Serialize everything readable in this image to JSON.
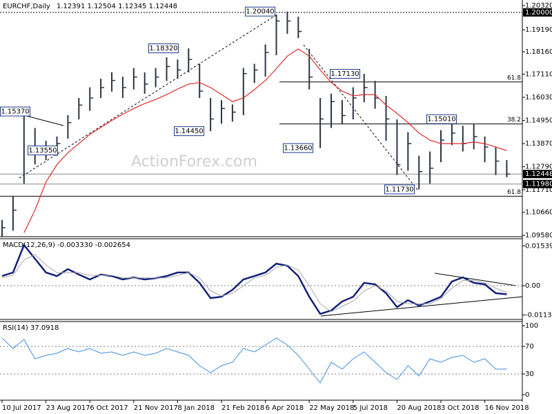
{
  "chart_data": [
    {
      "type": "hlc",
      "title": "EURCHF,Daily",
      "subtitle": "1.12391 1.12504 1.12345 1.12448",
      "watermark": "ActionForex.com",
      "categories": [
        "10 Jul 2017",
        null,
        null,
        null,
        "23 Aug 2017",
        null,
        null,
        null,
        "6 Oct 2017",
        null,
        null,
        null,
        "21 Nov 2017",
        null,
        null,
        null,
        "8 Jan 2018",
        null,
        null,
        null,
        "21 Feb 2018",
        null,
        null,
        null,
        "6 Apr 2018",
        null,
        null,
        null,
        "22 May 2018",
        null,
        null,
        null,
        "5 Jul 2018",
        null,
        null,
        null,
        "20 Aug 2018",
        null,
        null,
        null,
        "3 Oct 2018",
        null,
        null,
        null,
        "16 Nov 2018",
        null,
        null
      ],
      "high": [
        1.103,
        1.114,
        1.1537,
        1.146,
        1.14,
        1.142,
        1.152,
        1.16,
        1.165,
        1.169,
        1.172,
        1.17,
        1.174,
        1.172,
        1.174,
        1.179,
        1.178,
        1.1832,
        1.176,
        1.16,
        1.159,
        1.157,
        1.174,
        1.176,
        1.185,
        1.199,
        1.2004,
        1.198,
        1.183,
        1.16,
        1.162,
        1.159,
        1.165,
        1.1713,
        1.168,
        1.161,
        1.15,
        1.144,
        1.133,
        1.135,
        1.145,
        1.1501,
        1.147,
        1.148,
        1.142,
        1.137,
        1.131
      ],
      "low": [
        1.095,
        1.098,
        1.12,
        1.129,
        1.131,
        1.133,
        1.141,
        1.15,
        1.154,
        1.16,
        1.163,
        1.16,
        1.164,
        1.162,
        1.165,
        1.168,
        1.169,
        1.172,
        1.16,
        1.1445,
        1.148,
        1.149,
        1.152,
        1.167,
        1.17,
        1.18,
        1.19,
        1.188,
        1.164,
        1.1366,
        1.146,
        1.148,
        1.15,
        1.158,
        1.155,
        1.14,
        1.124,
        1.126,
        1.1173,
        1.12,
        1.13,
        1.138,
        1.135,
        1.136,
        1.13,
        1.124,
        1.123
      ],
      "close": [
        1.0994,
        1.1076,
        1.1518,
        1.1354,
        1.1338,
        1.1387,
        1.1485,
        1.1567,
        1.16,
        1.1649,
        1.1682,
        1.1649,
        1.1698,
        1.1665,
        1.1698,
        1.1747,
        1.1731,
        1.178,
        1.1632,
        1.1502,
        1.1551,
        1.1534,
        1.1714,
        1.1731,
        1.1813,
        1.196,
        1.196,
        1.1911,
        1.1698,
        1.1502,
        1.1583,
        1.1518,
        1.16,
        1.1649,
        1.16,
        1.1502,
        1.1289,
        1.1387,
        1.1256,
        1.1272,
        1.1403,
        1.1436,
        1.1387,
        1.142,
        1.1371,
        1.1305,
        1.12448
      ],
      "color": "#2b3440",
      "ma_values": [
        null,
        null,
        1.097,
        1.1076,
        1.1207,
        1.1289,
        1.1344,
        1.1387,
        1.143,
        1.1462,
        1.1495,
        1.1524,
        1.1551,
        1.1574,
        1.1593,
        1.1616,
        1.1642,
        1.1665,
        1.1672,
        1.1649,
        1.1616,
        1.1583,
        1.16,
        1.1639,
        1.1682,
        1.1737,
        1.1796,
        1.1829,
        1.1796,
        1.1731,
        1.1672,
        1.1632,
        1.161,
        1.1616,
        1.1616,
        1.1567,
        1.1528,
        1.1485,
        1.1436,
        1.1403,
        1.1387,
        1.1387,
        1.1387,
        1.1394,
        1.1387,
        1.1371,
        1.1354
      ],
      "ma_color": "#e02828",
      "ylim": [
        1.0952,
        1.2058
      ],
      "yticks": [
        {
          "value": 1.2032,
          "label": "1.20320"
        },
        {
          "value": 1.1919,
          "label": "1.19190"
        },
        {
          "value": 1.1816,
          "label": "1.18160"
        },
        {
          "value": 1.1711,
          "label": "1.17110"
        },
        {
          "value": 1.1603,
          "label": "1.16030"
        },
        {
          "value": 1.1495,
          "label": "1.14950"
        },
        {
          "value": 1.1387,
          "label": "1.13870"
        },
        {
          "value": 1.1279,
          "label": "1.12790"
        },
        {
          "value": 1.1171,
          "label": "1.11710"
        },
        {
          "value": 1.1066,
          "label": "1.10660"
        },
        {
          "value": 1.0958,
          "label": "1.09580"
        }
      ],
      "price_levels": [
        {
          "value": 1.2,
          "label": "1.20000"
        },
        {
          "value": 1.12448,
          "label": "1.12448"
        },
        {
          "value": 1.1198,
          "label": "1.11980"
        }
      ],
      "fib_levels": [
        {
          "value": 1.1675,
          "label": "61.8"
        },
        {
          "value": 1.1479,
          "label": "38.2"
        },
        {
          "value": 1.1141,
          "label": "61.8"
        }
      ],
      "annotations": [
        {
          "value": 1.2004,
          "label": "1.20040"
        },
        {
          "value": 1.1832,
          "label": "1.18320"
        },
        {
          "value": 1.1537,
          "label": "1.15370"
        },
        {
          "value": 1.1355,
          "label": "1.13550"
        },
        {
          "value": 1.1445,
          "label": "1.14450"
        },
        {
          "value": 1.1713,
          "label": "1.17130"
        },
        {
          "value": 1.1366,
          "label": "1.13660"
        },
        {
          "value": 1.1501,
          "label": "1.15010"
        },
        {
          "value": 1.1173,
          "label": "1.11730"
        }
      ]
    },
    {
      "type": "line",
      "title": "MACD(12,26,9) -0.003330 -0.002654",
      "series": [
        {
          "color": "#14207a",
          "values": [
            0.0037,
            0.0051,
            0.0157,
            0.0104,
            0.0051,
            0.0037,
            0.0064,
            0.0043,
            0.0024,
            0.0043,
            0.0037,
            0.0024,
            0.0032,
            0.0024,
            0.0029,
            0.0037,
            0.0051,
            0.0051,
            0.0011,
            -0.0048,
            -0.0043,
            -0.0016,
            0.0024,
            0.0037,
            0.0051,
            0.0085,
            0.0077,
            0.0037,
            -0.0043,
            -0.0109,
            -0.0096,
            -0.0061,
            -0.0043,
            0.0011,
            0.0005,
            -0.0029,
            -0.0083,
            -0.0056,
            -0.0077,
            -0.0061,
            -0.0043,
            0.0016,
            0.0032,
            0.0011,
            0.0005,
            -0.0029,
            -0.00333
          ]
        },
        {
          "color": "#a8a8a8",
          "values": [
            0.003,
            0.004,
            0.01,
            0.012,
            0.008,
            0.005,
            0.005,
            0.005,
            0.004,
            0.004,
            0.004,
            0.003,
            0.003,
            0.003,
            0.003,
            0.003,
            0.004,
            0.005,
            0.003,
            -0.002,
            -0.004,
            -0.003,
            0.0,
            0.003,
            0.004,
            0.007,
            0.008,
            0.006,
            0.0,
            -0.007,
            -0.01,
            -0.008,
            -0.006,
            -0.002,
            0.0,
            -0.002,
            -0.006,
            -0.007,
            -0.007,
            -0.007,
            -0.005,
            -0.001,
            0.002,
            0.002,
            0.001,
            -0.001,
            -0.002654
          ]
        }
      ],
      "ylim": [
        -0.01307,
        0.01813
      ],
      "yticks": [
        -0.011352,
        {
          "value": 0,
          "label": "0.00"
        },
        0.015394
      ]
    },
    {
      "type": "line",
      "title": "RSI(14) 37.0918",
      "series": [
        {
          "color": "#3c8ee0",
          "values": [
            82,
            67,
            80,
            52,
            57,
            60,
            67,
            62,
            67,
            60,
            62,
            57,
            62,
            57,
            60,
            67,
            62,
            57,
            42,
            32,
            42,
            47,
            67,
            62,
            72,
            82,
            72,
            57,
            37,
            17,
            47,
            37,
            52,
            62,
            47,
            32,
            22,
            42,
            27,
            52,
            47,
            54,
            57,
            47,
            52,
            37,
            37.0918
          ]
        }
      ],
      "ylim": [
        -8,
        106
      ],
      "yticks": [
        0,
        30,
        70,
        100
      ]
    }
  ]
}
